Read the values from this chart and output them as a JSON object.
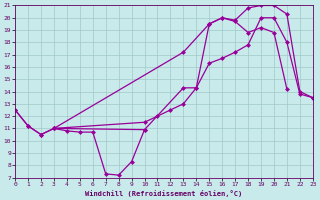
{
  "background_color": "#c8eaea",
  "grid_color": "#a0c8c8",
  "line_color": "#990099",
  "xlabel": "Windchill (Refroidissement éolien,°C)",
  "xlim": [
    0,
    23
  ],
  "ylim": [
    7,
    21
  ],
  "xticks": [
    0,
    1,
    2,
    3,
    4,
    5,
    6,
    7,
    8,
    9,
    10,
    11,
    12,
    13,
    14,
    15,
    16,
    17,
    18,
    19,
    20,
    21,
    22,
    23
  ],
  "yticks": [
    7,
    8,
    9,
    10,
    11,
    12,
    13,
    14,
    15,
    16,
    17,
    18,
    19,
    20,
    21
  ],
  "curve1_x": [
    0,
    1,
    2,
    3,
    4,
    5,
    6,
    7,
    8,
    9,
    10
  ],
  "curve1_y": [
    12.5,
    11.2,
    10.5,
    11.0,
    10.8,
    10.7,
    10.7,
    7.3,
    7.2,
    8.3,
    10.9
  ],
  "curve2_x": [
    0,
    1,
    2,
    3,
    10,
    11,
    12,
    13,
    14,
    15,
    16,
    17,
    18,
    19,
    20,
    21,
    22,
    23
  ],
  "curve2_y": [
    12.5,
    11.2,
    10.5,
    11.0,
    11.5,
    12.0,
    12.5,
    13.0,
    14.3,
    16.3,
    16.7,
    17.2,
    17.8,
    20.0,
    20.0,
    18.0,
    13.8,
    13.5
  ],
  "curve3_x": [
    3,
    10,
    13,
    14,
    15,
    16,
    17,
    18,
    19,
    20,
    21,
    22,
    23
  ],
  "curve3_y": [
    11.0,
    10.9,
    14.3,
    14.3,
    19.5,
    20.0,
    19.8,
    20.8,
    21.0,
    21.0,
    20.3,
    14.0,
    13.5
  ],
  "curve4_x": [
    3,
    13,
    15,
    16,
    17,
    18,
    19,
    20,
    21
  ],
  "curve4_y": [
    11.0,
    17.2,
    19.5,
    20.0,
    19.7,
    18.8,
    19.2,
    18.8,
    14.2
  ]
}
